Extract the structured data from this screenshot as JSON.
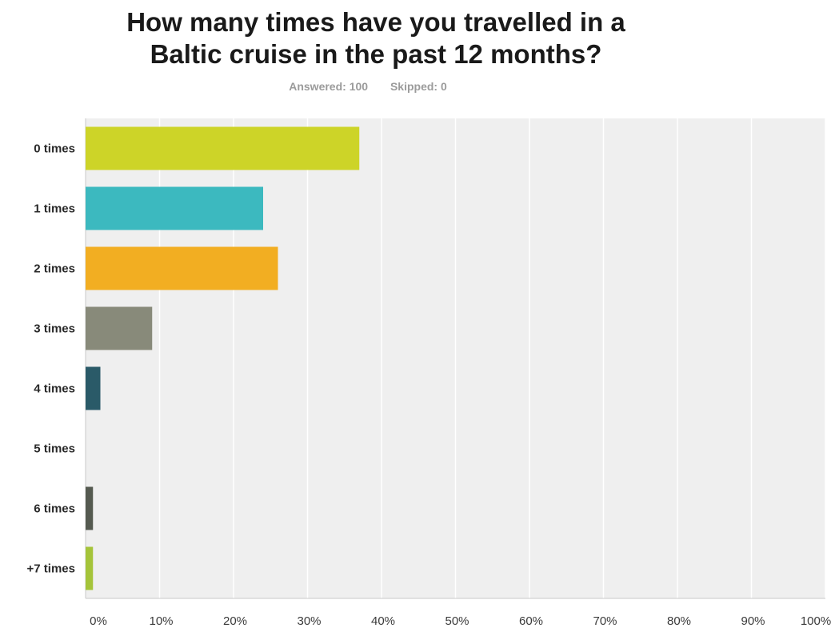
{
  "header": {
    "title_line1": "How many times have you travelled in a",
    "title_line2": "Baltic cruise in the past 12 months?",
    "answered": "Answered: 100",
    "skipped": "Skipped: 0"
  },
  "chart_data": {
    "type": "bar",
    "orientation": "horizontal",
    "categories": [
      "0 times",
      "1 times",
      "2 times",
      "3 times",
      "4 times",
      "5 times",
      "6 times",
      "+7 times"
    ],
    "values": [
      37,
      24,
      26,
      9,
      2,
      0,
      1,
      1
    ],
    "colors": [
      "#cdd428",
      "#3cb9bf",
      "#f2ae22",
      "#888a7a",
      "#2a5a68",
      "#ffffff",
      "#555a50",
      "#a5c43a"
    ],
    "xlim": [
      0,
      100
    ],
    "x_ticks": [
      "0%",
      "10%",
      "20%",
      "30%",
      "40%",
      "50%",
      "60%",
      "70%",
      "80%",
      "90%",
      "100%"
    ],
    "grid": true,
    "title": "How many times have you travelled in a Baltic cruise in the past 12 months?",
    "xlabel": "",
    "ylabel": ""
  }
}
